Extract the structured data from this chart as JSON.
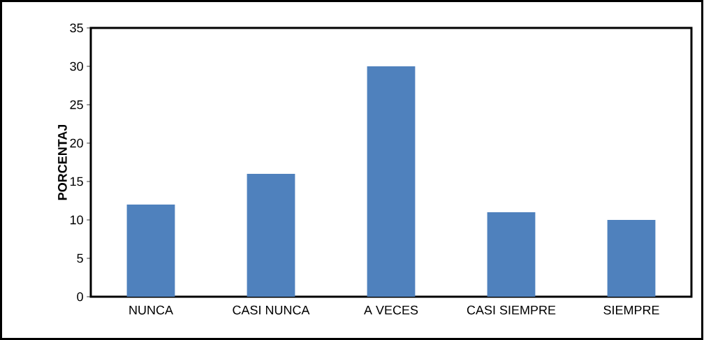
{
  "chart_data": {
    "type": "bar",
    "ylabel": "PORCENTAJ",
    "categories": [
      "NUNCA",
      "CASI NUNCA",
      "A VECES",
      "CASI SIEMPRE",
      "SIEMPRE"
    ],
    "values": [
      12,
      16,
      30,
      11,
      10
    ],
    "color": "#4f81bd",
    "ylim": [
      0,
      35
    ],
    "yticks": [
      0,
      5,
      10,
      15,
      20,
      25,
      30,
      35
    ]
  }
}
